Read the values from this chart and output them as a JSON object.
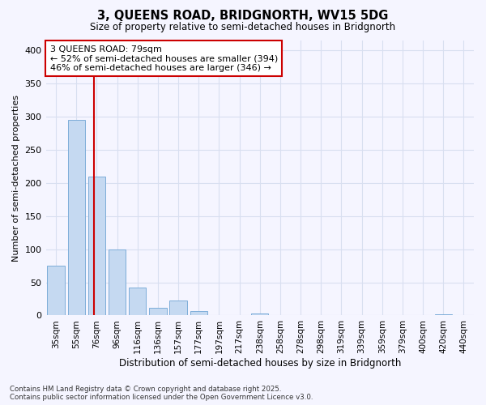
{
  "title_line1": "3, QUEENS ROAD, BRIDGNORTH, WV15 5DG",
  "title_line2": "Size of property relative to semi-detached houses in Bridgnorth",
  "xlabel": "Distribution of semi-detached houses by size in Bridgnorth",
  "ylabel": "Number of semi-detached properties",
  "categories": [
    "35sqm",
    "55sqm",
    "76sqm",
    "96sqm",
    "116sqm",
    "136sqm",
    "157sqm",
    "177sqm",
    "197sqm",
    "217sqm",
    "238sqm",
    "258sqm",
    "278sqm",
    "298sqm",
    "319sqm",
    "339sqm",
    "359sqm",
    "379sqm",
    "400sqm",
    "420sqm",
    "440sqm"
  ],
  "values": [
    75,
    295,
    210,
    100,
    42,
    12,
    22,
    7,
    0,
    0,
    3,
    0,
    0,
    0,
    0,
    0,
    0,
    0,
    0,
    2,
    0
  ],
  "bar_color": "#c5d9f1",
  "bar_edge_color": "#7dadd9",
  "redline_x": 1.85,
  "annotation_line1": "3 QUEENS ROAD: 79sqm",
  "annotation_line2": "← 52% of semi-detached houses are smaller (394)",
  "annotation_line3": "46% of semi-detached houses are larger (346) →",
  "annotation_box_facecolor": "#ffffff",
  "annotation_box_edgecolor": "#cc0000",
  "redline_color": "#cc0000",
  "ylim": [
    0,
    415
  ],
  "yticks": [
    0,
    50,
    100,
    150,
    200,
    250,
    300,
    350,
    400
  ],
  "background_color": "#f5f5ff",
  "grid_color": "#d8dff0",
  "footer_line1": "Contains HM Land Registry data © Crown copyright and database right 2025.",
  "footer_line2": "Contains public sector information licensed under the Open Government Licence v3.0."
}
